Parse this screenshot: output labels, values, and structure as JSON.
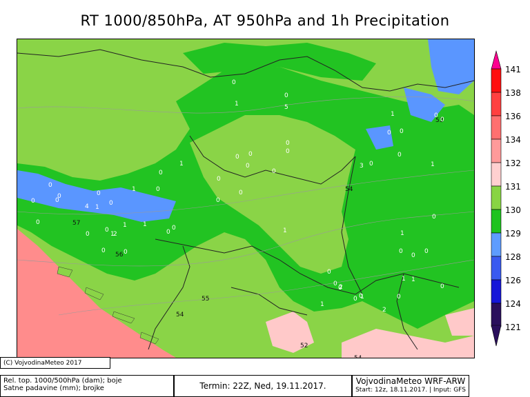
{
  "title": "RT 1000/850hPa, AT 950hPa and 1h Precipitation",
  "legend": {
    "levels": [
      "141",
      "138",
      "136",
      "134",
      "132",
      "131",
      "130",
      "129",
      "128",
      "126",
      "124",
      "121"
    ],
    "colors": [
      "#ff0090",
      "#ff1010",
      "#ff4040",
      "#ff7070",
      "#ff9a9a",
      "#ffd0d0",
      "#88d444",
      "#1ec31e",
      "#5e9cff",
      "#3a5af0",
      "#1616d8",
      "#2a0f5c"
    ]
  },
  "map": {
    "colors": {
      "sea": "#ff8c8c",
      "light_green": "#8ad447",
      "dark_green": "#22c322",
      "blue": "#5a96ff",
      "pink": "#ffc9c9"
    },
    "contour_labels": [
      "57",
      "56",
      "55",
      "54",
      "54",
      "53",
      "54",
      "52"
    ],
    "precip_values": [
      "1",
      "1",
      "0",
      "0",
      "2",
      "1",
      "1",
      "0",
      "0",
      "0",
      "1",
      "2",
      "0",
      "0",
      "4",
      "5",
      "3",
      "0",
      "0",
      "1",
      "2",
      "0",
      "0",
      "1",
      "0",
      "1",
      "1",
      "1",
      "0",
      "0",
      "0",
      "0",
      "1",
      "0",
      "0",
      "1",
      "0",
      "1",
      "1",
      "0",
      "0",
      "1",
      "0",
      "0",
      "0",
      "0",
      "0",
      "0",
      "0",
      "0",
      "0",
      "0",
      "0",
      "0",
      "0",
      "0",
      "0",
      "0",
      "0",
      "0",
      "0",
      "0",
      "0",
      "0"
    ]
  },
  "footer": {
    "copyright": "(C) VojvodinaMeteo 2017",
    "caption_line1": "Rel. top. 1000/500hPa (dam); boje",
    "caption_line2": "Satne padavine (mm); brojke",
    "termin": "Termin: 22Z, Ned, 19.11.2017.",
    "model_title": "VojvodinaMeteo WRF-ARW",
    "model_info": "Start: 12z, 18.11.2017. | Input: GFS"
  }
}
